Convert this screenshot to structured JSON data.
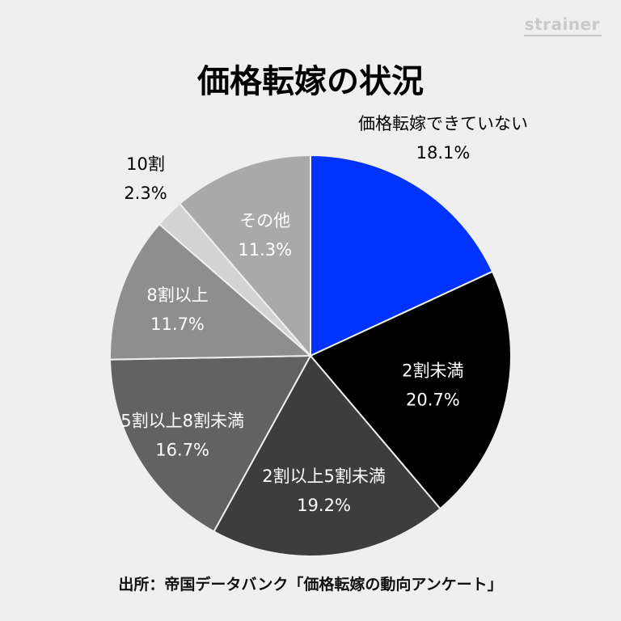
{
  "brand": "strainer",
  "title": "価格転嫁の状況",
  "source": "出所：帝国データバンク「価格転嫁の動向アンケート」",
  "chart_data": {
    "type": "pie",
    "title": "価格転嫁の状況",
    "slices": [
      {
        "label": "価格転嫁できていない",
        "value": 18.1,
        "value_label": "18.1%",
        "color": "#0033ff",
        "text_color": "#000000",
        "label_position": "outside"
      },
      {
        "label": "2割未満",
        "value": 20.7,
        "value_label": "20.7%",
        "color": "#000000",
        "text_color": "#ffffff",
        "label_position": "inside"
      },
      {
        "label": "2割以上5割未満",
        "value": 19.2,
        "value_label": "19.2%",
        "color": "#3d3d3d",
        "text_color": "#ffffff",
        "label_position": "inside"
      },
      {
        "label": "5割以上8割未満",
        "value": 16.7,
        "value_label": "16.7%",
        "color": "#626262",
        "text_color": "#ffffff",
        "label_position": "inside"
      },
      {
        "label": "8割以上",
        "value": 11.7,
        "value_label": "11.7%",
        "color": "#8e8e8e",
        "text_color": "#ffffff",
        "label_position": "inside"
      },
      {
        "label": "10割",
        "value": 2.3,
        "value_label": "2.3%",
        "color": "#d3d3d3",
        "text_color": "#000000",
        "label_position": "outside"
      },
      {
        "label": "その他",
        "value": 11.3,
        "value_label": "11.3%",
        "color": "#a9a9a9",
        "text_color": "#ffffff",
        "label_position": "inside"
      }
    ],
    "start": "12 o'clock",
    "direction": "clockwise",
    "legend": "none"
  }
}
